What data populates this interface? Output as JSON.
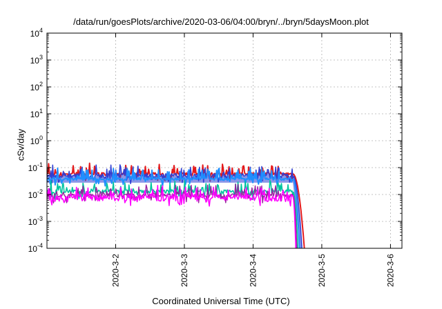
{
  "chart_data": {
    "type": "line",
    "title": "/data/run/goesPlots/archive/2020-03-06/04:00/bryn/../bryn/5daysMoon.plot",
    "xlabel": "Coordinated Universal Time (UTC)",
    "ylabel": "cSv/day",
    "yscale": "log",
    "ylim": [
      0.0001,
      10000
    ],
    "xlim": [
      "2020-03-01 00:00",
      "2020-03-06 04:00"
    ],
    "x_ticks": [
      "2020-3-2",
      "2020-3-3",
      "2020-3-4",
      "2020-3-5",
      "2020-3-6"
    ],
    "y_ticks": [
      {
        "value": 0.0001,
        "base": "10",
        "exp": "-4"
      },
      {
        "value": 0.001,
        "base": "10",
        "exp": "-3"
      },
      {
        "value": 0.01,
        "base": "10",
        "exp": "-2"
      },
      {
        "value": 0.1,
        "base": "10",
        "exp": "-1"
      },
      {
        "value": 1,
        "base": "10",
        "exp": "0"
      },
      {
        "value": 10,
        "base": "10",
        "exp": "1"
      },
      {
        "value": 100,
        "base": "10",
        "exp": "2"
      },
      {
        "value": 1000,
        "base": "10",
        "exp": "3"
      },
      {
        "value": 10000,
        "base": "10",
        "exp": "4"
      }
    ],
    "grid": true,
    "data_end_day": 3.58,
    "decay_end_day": 3.78,
    "series": [
      {
        "color": "#e41a1c",
        "level": 0.058,
        "noise": 0.25,
        "width": 2.0,
        "decay": 3.78
      },
      {
        "color": "#2f3fd4",
        "level": 0.05,
        "noise": 0.45,
        "width": 1.5,
        "fill": true,
        "decay": 3.74
      },
      {
        "color": "#1f8fff",
        "level": 0.038,
        "noise": 0.2,
        "width": 2.0,
        "decay": 3.7
      },
      {
        "color": "#00c3a0",
        "level": 0.013,
        "noise": 0.3,
        "width": 1.6,
        "decay": 3.68
      },
      {
        "color": "#9b1fa0",
        "level": 0.0095,
        "noise": 0.28,
        "width": 1.4,
        "decay": 3.66
      },
      {
        "color": "#ff00ff",
        "level": 0.0078,
        "noise": 0.55,
        "width": 1.6,
        "decay": 3.64
      }
    ]
  }
}
